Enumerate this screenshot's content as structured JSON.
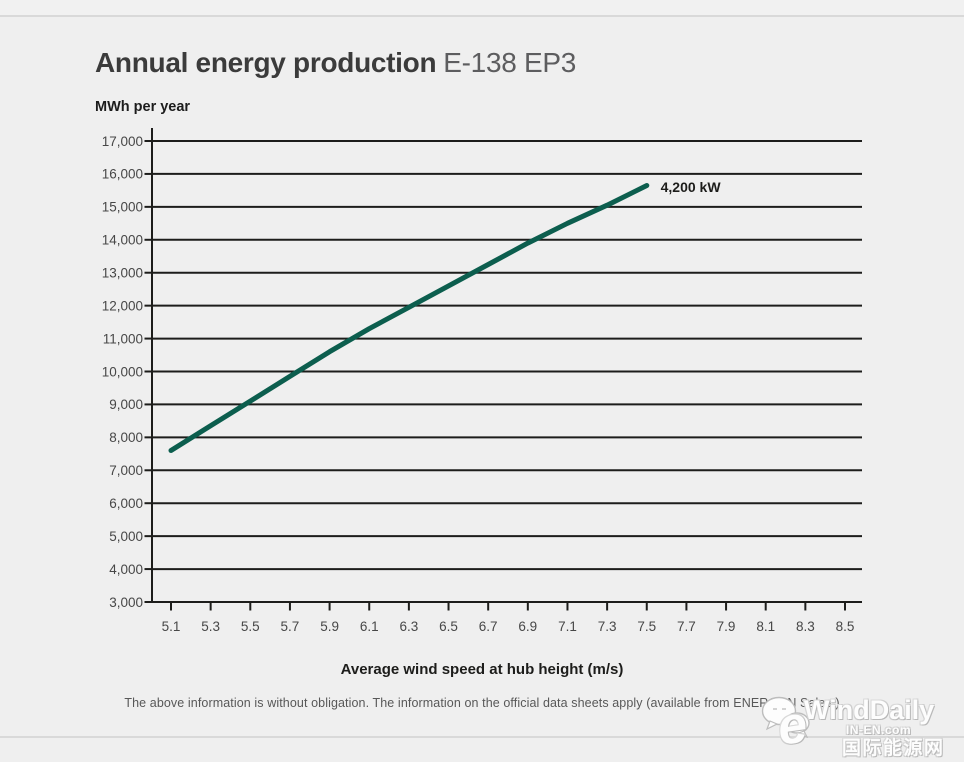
{
  "header": {
    "title_main": "Annual energy production",
    "title_model": "E-138 EP3"
  },
  "chart_data": {
    "type": "line",
    "title": "Annual energy production E-138 EP3",
    "ylabel": "MWh per year",
    "xlabel": "Average wind speed at hub height (m/s)",
    "grid": "horizontal-only",
    "legend": "none",
    "ylim": [
      3000,
      17000
    ],
    "xlim": [
      5.1,
      8.5
    ],
    "y_ticks": [
      17000,
      16000,
      15000,
      14000,
      13000,
      12000,
      11000,
      10000,
      9000,
      8000,
      7000,
      6000,
      5000,
      4000,
      3000
    ],
    "x_ticks": [
      5.1,
      5.3,
      5.5,
      5.7,
      5.9,
      6.1,
      6.3,
      6.5,
      6.7,
      6.9,
      7.1,
      7.3,
      7.5,
      7.7,
      7.9,
      8.1,
      8.3,
      8.5
    ],
    "series": [
      {
        "name": "4,200 kW",
        "color": "#0c5e4e",
        "x": [
          5.1,
          5.3,
          5.5,
          5.7,
          5.9,
          6.1,
          6.3,
          6.5,
          6.7,
          6.9,
          7.1,
          7.3,
          7.5
        ],
        "values": [
          7600,
          8350,
          9100,
          9850,
          10600,
          11300,
          11950,
          12600,
          13250,
          13900,
          14500,
          15050,
          15650
        ]
      }
    ],
    "annotation": {
      "text": "4,200 kW",
      "anchor_x": 7.57,
      "anchor_y": 15450
    }
  },
  "footer": {
    "disclaimer": "The above information is without obligation. The information on the official data sheets apply (available from ENERCON Sales.)"
  },
  "watermark": {
    "bubbles_icon": "wechat-chat-bubbles",
    "brand": "WindDaily",
    "logo_letter": "e",
    "site": "IN-EN.com",
    "site_cn": "国际能源网"
  },
  "colors": {
    "background": "#efefef",
    "gridline": "#1d1d1b",
    "curve": "#0c5e4e",
    "divider": "#d9d9d9"
  }
}
